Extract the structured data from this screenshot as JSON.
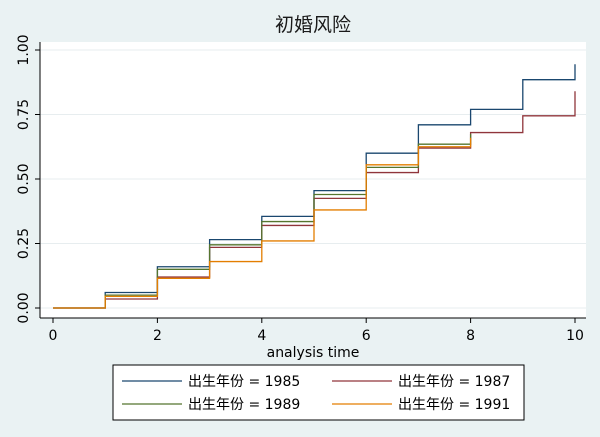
{
  "chart_data": {
    "type": "line",
    "step": true,
    "title": "初婚风险",
    "xlabel": "analysis time",
    "ylabel": "",
    "xlim": [
      0,
      10
    ],
    "ylim": [
      0,
      1
    ],
    "xticks": [
      "0",
      "2",
      "4",
      "6",
      "8",
      "10"
    ],
    "yticks": [
      "0.00",
      "0.25",
      "0.50",
      "0.75",
      "1.00"
    ],
    "grid": true,
    "legend_position": "bottom",
    "series": [
      {
        "name": "出生年份 = 1985",
        "color": "#1a476f",
        "x": [
          0,
          1,
          2,
          3,
          4,
          5,
          6,
          7,
          8,
          9,
          10
        ],
        "y": [
          0,
          0.06,
          0.16,
          0.265,
          0.355,
          0.455,
          0.6,
          0.71,
          0.77,
          0.885,
          0.945
        ]
      },
      {
        "name": "出生年份 = 1987",
        "color": "#90353b",
        "x": [
          0,
          1,
          2,
          3,
          4,
          5,
          6,
          7,
          8,
          9,
          10
        ],
        "y": [
          0,
          0.035,
          0.12,
          0.235,
          0.32,
          0.425,
          0.525,
          0.62,
          0.68,
          0.745,
          0.84
        ]
      },
      {
        "name": "出生年份 = 1989",
        "color": "#55752f",
        "x": [
          0,
          1,
          2,
          3,
          4,
          5,
          6,
          7,
          8
        ],
        "y": [
          0,
          0.05,
          0.15,
          0.245,
          0.335,
          0.44,
          0.545,
          0.635,
          0.675
        ]
      },
      {
        "name": "出生年份 = 1991",
        "color": "#e37e00",
        "x": [
          0,
          1,
          2,
          3,
          4,
          5,
          6,
          7,
          8
        ],
        "y": [
          0,
          0.045,
          0.115,
          0.18,
          0.26,
          0.38,
          0.555,
          0.625,
          0.66
        ]
      }
    ]
  }
}
